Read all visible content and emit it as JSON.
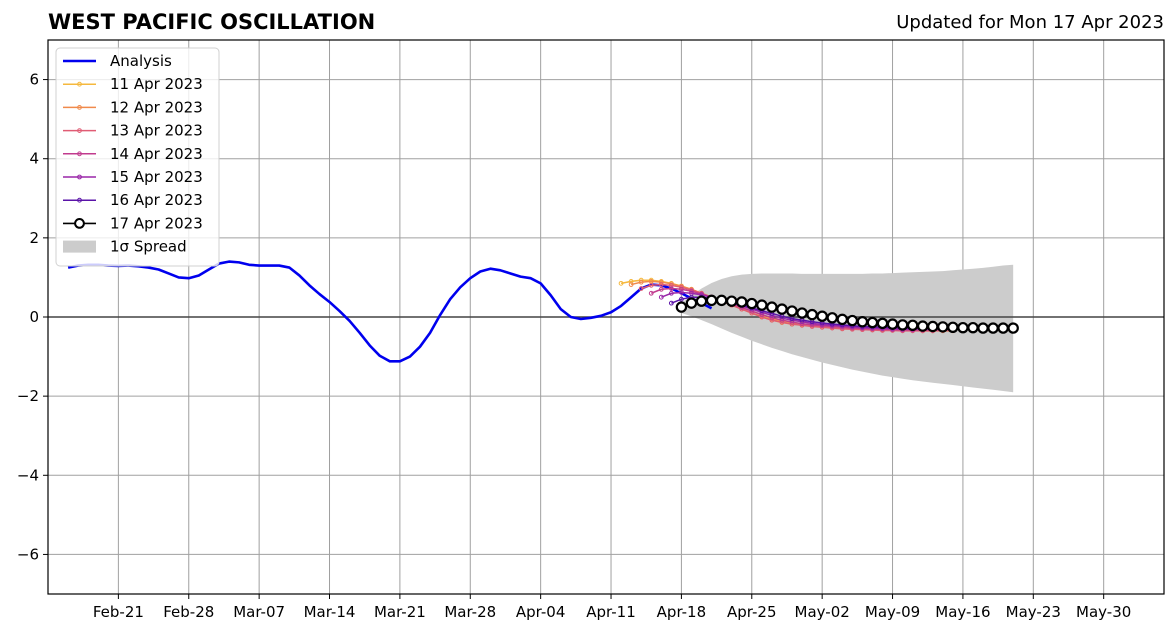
{
  "chart_data": {
    "type": "line",
    "title": "WEST PACIFIC OSCILLATION",
    "subtitle": "Updated for Mon 17 Apr 2023",
    "xlabel": "",
    "ylabel": "",
    "ylim": [
      -7,
      7
    ],
    "xlim": [
      "2023-02-14",
      "2023-06-05"
    ],
    "yticks": [
      -6,
      -4,
      -2,
      0,
      2,
      4,
      6
    ],
    "ytick_labels": [
      "−6",
      "−4",
      "−2",
      "0",
      "2",
      "4",
      "6"
    ],
    "xticks": [
      "2023-02-21",
      "2023-02-28",
      "2023-03-07",
      "2023-03-14",
      "2023-03-21",
      "2023-03-28",
      "2023-04-04",
      "2023-04-11",
      "2023-04-18",
      "2023-04-25",
      "2023-05-02",
      "2023-05-09",
      "2023-05-16",
      "2023-05-23",
      "2023-05-30"
    ],
    "xtick_labels": [
      "Feb-21",
      "Feb-28",
      "Mar-07",
      "Mar-14",
      "Mar-21",
      "Mar-28",
      "Apr-04",
      "Apr-11",
      "Apr-18",
      "Apr-25",
      "May-02",
      "May-09",
      "May-16",
      "May-23",
      "May-30"
    ],
    "grid": true,
    "legend_position": "upper-left",
    "analysis": {
      "name": "Analysis",
      "color": "#0000ee",
      "start": "2023-02-16",
      "values": [
        1.25,
        1.3,
        1.32,
        1.32,
        1.3,
        1.29,
        1.3,
        1.28,
        1.25,
        1.2,
        1.1,
        1.0,
        0.98,
        1.05,
        1.2,
        1.35,
        1.4,
        1.38,
        1.32,
        1.3,
        1.3,
        1.3,
        1.25,
        1.05,
        0.8,
        0.58,
        0.38,
        0.15,
        -0.1,
        -0.4,
        -0.72,
        -0.98,
        -1.12,
        -1.12,
        -1.0,
        -0.75,
        -0.4,
        0.05,
        0.45,
        0.75,
        0.98,
        1.15,
        1.22,
        1.18,
        1.1,
        1.02,
        0.98,
        0.85,
        0.55,
        0.2,
        0.0,
        -0.05,
        -0.02,
        0.03,
        0.12,
        0.28,
        0.5,
        0.72,
        0.82,
        0.8,
        0.72,
        0.6,
        0.47,
        0.35,
        0.22
      ]
    },
    "forecasts": [
      {
        "name": "11 Apr 2023",
        "color": "#f5b83d",
        "start": "2023-04-12",
        "values": [
          0.85,
          0.9,
          0.93,
          0.93,
          0.9,
          0.85,
          0.78,
          0.7,
          0.6,
          0.5,
          0.4,
          0.3,
          0.2,
          0.1,
          0.02,
          -0.05,
          -0.1,
          -0.15,
          -0.18,
          -0.2,
          -0.22,
          -0.24,
          -0.25,
          -0.27,
          -0.28,
          -0.29,
          -0.3,
          -0.3,
          -0.31,
          -0.32,
          -0.32,
          -0.32,
          -0.33,
          -0.33
        ]
      },
      {
        "name": "12 Apr 2023",
        "color": "#f08a4b",
        "start": "2023-04-13",
        "values": [
          0.82,
          0.88,
          0.9,
          0.88,
          0.84,
          0.78,
          0.7,
          0.6,
          0.5,
          0.4,
          0.3,
          0.2,
          0.1,
          0.0,
          -0.08,
          -0.14,
          -0.18,
          -0.2,
          -0.23,
          -0.25,
          -0.27,
          -0.29,
          -0.3,
          -0.31,
          -0.32,
          -0.33,
          -0.33,
          -0.34,
          -0.34,
          -0.35,
          -0.35,
          -0.35,
          -0.35
        ]
      },
      {
        "name": "13 Apr 2023",
        "color": "#e05c74",
        "start": "2023-04-14",
        "values": [
          0.72,
          0.8,
          0.82,
          0.8,
          0.75,
          0.68,
          0.6,
          0.5,
          0.4,
          0.3,
          0.2,
          0.1,
          0.0,
          -0.08,
          -0.13,
          -0.18,
          -0.21,
          -0.24,
          -0.26,
          -0.28,
          -0.3,
          -0.31,
          -0.32,
          -0.33,
          -0.34,
          -0.34,
          -0.35,
          -0.35,
          -0.35,
          -0.35,
          -0.34,
          -0.34
        ]
      },
      {
        "name": "14 Apr 2023",
        "color": "#c13b8e",
        "start": "2023-04-15",
        "values": [
          0.6,
          0.7,
          0.72,
          0.7,
          0.65,
          0.58,
          0.5,
          0.42,
          0.33,
          0.24,
          0.15,
          0.06,
          -0.02,
          -0.08,
          -0.13,
          -0.17,
          -0.2,
          -0.22,
          -0.24,
          -0.26,
          -0.28,
          -0.29,
          -0.3,
          -0.31,
          -0.32,
          -0.33,
          -0.33,
          -0.33,
          -0.33,
          -0.33,
          -0.32
        ]
      },
      {
        "name": "15 Apr 2023",
        "color": "#9a27a8",
        "start": "2023-04-16",
        "values": [
          0.5,
          0.6,
          0.62,
          0.6,
          0.56,
          0.5,
          0.43,
          0.36,
          0.28,
          0.2,
          0.12,
          0.04,
          -0.03,
          -0.08,
          -0.12,
          -0.16,
          -0.19,
          -0.21,
          -0.23,
          -0.25,
          -0.27,
          -0.28,
          -0.29,
          -0.3,
          -0.31,
          -0.31,
          -0.31,
          -0.31,
          -0.3,
          -0.3
        ]
      },
      {
        "name": "16 Apr 2023",
        "color": "#5a13a8",
        "start": "2023-04-17",
        "values": [
          0.35,
          0.45,
          0.5,
          0.5,
          0.47,
          0.42,
          0.36,
          0.3,
          0.23,
          0.16,
          0.09,
          0.02,
          -0.04,
          -0.08,
          -0.12,
          -0.15,
          -0.18,
          -0.2,
          -0.22,
          -0.24,
          -0.25,
          -0.26,
          -0.27,
          -0.28,
          -0.28,
          -0.28,
          -0.28,
          -0.28,
          -0.28
        ]
      }
    ],
    "main_forecast": {
      "name": "17 Apr 2023",
      "color": "#000000",
      "start": "2023-04-18",
      "values": [
        0.25,
        0.35,
        0.4,
        0.42,
        0.42,
        0.4,
        0.38,
        0.34,
        0.3,
        0.25,
        0.2,
        0.15,
        0.1,
        0.06,
        0.02,
        -0.02,
        -0.06,
        -0.09,
        -0.12,
        -0.14,
        -0.16,
        -0.18,
        -0.2,
        -0.21,
        -0.23,
        -0.24,
        -0.25,
        -0.26,
        -0.27,
        -0.27,
        -0.28,
        -0.28,
        -0.28,
        -0.28
      ]
    },
    "spread": {
      "name": "1σ Spread",
      "color": "#cccccc",
      "start": "2023-04-18",
      "upper": [
        0.35,
        0.55,
        0.72,
        0.86,
        0.96,
        1.03,
        1.07,
        1.09,
        1.1,
        1.1,
        1.1,
        1.1,
        1.09,
        1.09,
        1.09,
        1.09,
        1.09,
        1.09,
        1.09,
        1.1,
        1.1,
        1.11,
        1.12,
        1.13,
        1.14,
        1.15,
        1.16,
        1.18,
        1.2,
        1.22,
        1.24,
        1.27,
        1.3,
        1.32
      ],
      "lower": [
        0.1,
        0.02,
        -0.08,
        -0.18,
        -0.29,
        -0.4,
        -0.5,
        -0.6,
        -0.69,
        -0.78,
        -0.86,
        -0.94,
        -1.01,
        -1.08,
        -1.15,
        -1.21,
        -1.27,
        -1.33,
        -1.38,
        -1.43,
        -1.48,
        -1.52,
        -1.56,
        -1.6,
        -1.63,
        -1.66,
        -1.69,
        -1.72,
        -1.75,
        -1.78,
        -1.81,
        -1.84,
        -1.87,
        -1.9
      ]
    }
  }
}
